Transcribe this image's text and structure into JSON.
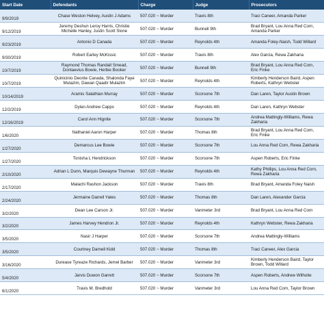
{
  "headers": [
    "Start Date",
    "Defendants",
    "Charge",
    "Judge",
    "Prosecutors"
  ],
  "rows": [
    {
      "date": "9/9/2019",
      "defendants": "Chase Weston Helvey, Austin J Adams",
      "charge": "507.020 ~ Murder",
      "judge": "Travis 8th",
      "prosecutors": "Traci Caneer, Amanda Parker"
    },
    {
      "date": "9/12/2019",
      "defendants": "Jeremy Deshun Leroy Harris, Christie Michelle Hanley, Justin Scott Slone",
      "charge": "507.020 ~ Murder",
      "judge": "Bunnell 9th",
      "prosecutors": "Brad Bryant, Lou Anna Red Corn, Amanda Parker"
    },
    {
      "date": "9/23/2019",
      "defendants": "Antonio D Canada",
      "charge": "507.020 ~ Murder",
      "judge": "Reynolds 4th",
      "prosecutors": "Amanda Foley-Naish, Todd Willard"
    },
    {
      "date": "9/30/2019",
      "defendants": "Robert Earley McKissic",
      "charge": "507.020 ~ Murder",
      "judge": "Travis 8th",
      "prosecutors": "Alex Garcia, Rewa Zakharia"
    },
    {
      "date": "10/7/2019",
      "defendants": "Raymond Thomas Randall Smead, Dontaevius Bowie, Herbie Booker",
      "charge": "507.020 ~ Murder",
      "judge": "Bunnell 9th",
      "prosecutors": "Brad Bryant, Lou Anna Red Corn, Eric Finke"
    },
    {
      "date": "10/7/2019",
      "defendants": "Quinicinio Deonte Canada, Shalonda Faye Mulazim, Dawan Qaadir Mulazim",
      "charge": "507.020 ~ Murder",
      "judge": "Reynolds 4th",
      "prosecutors": "Kimberly Henderson Baird, Aspen Roberts, Kathryn Webster"
    },
    {
      "date": "10/14/2019",
      "defendants": "Aramis Salathian Murray",
      "charge": "507.020 ~ Murder",
      "judge": "Scorsone 7th",
      "prosecutors": "Dan Laren, Taylor Austin Brown"
    },
    {
      "date": "12/2/2019",
      "defendants": "Dylan Andrew Capps",
      "charge": "507.020 ~ Murder",
      "judge": "Reynolds 4th",
      "prosecutors": "Dan Laren, Kathryn Webster"
    },
    {
      "date": "12/16/2019",
      "defendants": "Carol Ann Hignite",
      "charge": "507.020 ~ Murder",
      "judge": "Scorsone 7th",
      "prosecutors": "Andrea Mattingly-Williams, Rewa Zakharia"
    },
    {
      "date": "1/6/2020",
      "defendants": "Nathaniel Aaron Harper",
      "charge": "507.020 ~ Murder",
      "judge": "Thomas 8th",
      "prosecutors": "Brad Bryant, Lou Anna Red Corn, Eric Finke"
    },
    {
      "date": "1/27/2020",
      "defendants": "Demarcus Lee Bowie",
      "charge": "507.020 ~ Murder",
      "judge": "Scorsone 7th",
      "prosecutors": "Lou Anna Red Corn, Rewa Zakharia"
    },
    {
      "date": "1/27/2020",
      "defendants": "Tonisha L Hendrickson",
      "charge": "507.020 ~ Murder",
      "judge": "Scorsone 7th",
      "prosecutors": "Aspen Roberts, Eric Finke"
    },
    {
      "date": "2/10/2020",
      "defendants": "Adrian L Dunn, Marquis Dewayne Thurman",
      "charge": "507.020 ~ Murder",
      "judge": "Reynolds 4th",
      "prosecutors": "Kathy Phillips, Lou Anna Red Corn, Rewa Zakharia"
    },
    {
      "date": "2/17/2020",
      "defendants": "Malachi Rashon Jackson",
      "charge": "507.020 ~ Murder",
      "judge": "Travis 8th",
      "prosecutors": "Brad Bryant, Amanda Foley Naish"
    },
    {
      "date": "2/24/2020",
      "defendants": "Jermaine Darrell Yates",
      "charge": "507.020 ~ Murder",
      "judge": "Thomas 8th",
      "prosecutors": "Dan Laren, Alexander Garcia"
    },
    {
      "date": "3/2/2020",
      "defendants": "Dean Lee Carson Jr.",
      "charge": "507.020 ~ Murder",
      "judge": "Vanmeter 3rd",
      "prosecutors": "Brad Bryant, Lou Anna Red Corn"
    },
    {
      "date": "3/2/2020",
      "defendants": "James Harvey Hendron Jr.",
      "charge": "507.020 ~ Murder",
      "judge": "Reynolds 4th",
      "prosecutors": "Kathryn Webster, Rewa Zakharia"
    },
    {
      "date": "3/5/2020",
      "defendants": "Nasir J Harper",
      "charge": "507.020 ~ Murder",
      "judge": "Scorsone 7th",
      "prosecutors": "Andrea Mattingly-Williams"
    },
    {
      "date": "3/5/2020",
      "defendants": "Courtney Darnell Kidd",
      "charge": "507.020 ~ Murder",
      "judge": "Thomas 8th",
      "prosecutors": "Traci Caneer, Alex Garcia"
    },
    {
      "date": "3/16/2020",
      "defendants": "Durease Tyreaze Richards, Jemel Barber",
      "charge": "507.020 ~ Murder",
      "judge": "Vanmeter 3rd",
      "prosecutors": "Kimberly Henderson Baird, Taylor Brown, Todd Willard"
    },
    {
      "date": "5/4/2020",
      "defendants": "Jarvis Duwon Garrett",
      "charge": "507.020 ~ Murder",
      "judge": "Scorsone 7th",
      "prosecutors": "Aspen Roberts, Andrew Wilhoite"
    },
    {
      "date": "6/1/2020",
      "defendants": "Travis M. Bredhold",
      "charge": "507.020 ~ Murder",
      "judge": "Vanmeter 3rd",
      "prosecutors": "Lou Anna Red Corn, Taylor Brown"
    }
  ]
}
